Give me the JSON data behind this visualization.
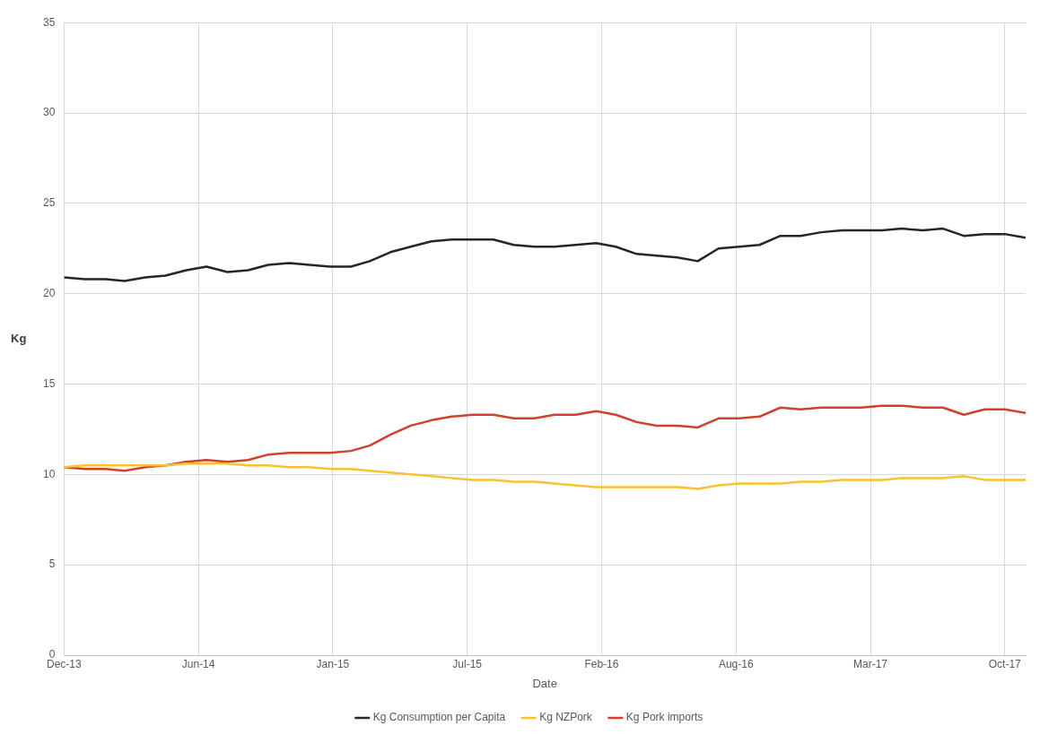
{
  "chart_data": {
    "type": "line",
    "xlabel": "Date",
    "ylabel": "Kg",
    "x": [
      "2013-12",
      "2014-01",
      "2014-02",
      "2014-03",
      "2014-04",
      "2014-05",
      "2014-06",
      "2014-07",
      "2014-08",
      "2014-09",
      "2014-10",
      "2014-11",
      "2014-12",
      "2015-01",
      "2015-02",
      "2015-03",
      "2015-04",
      "2015-05",
      "2015-06",
      "2015-07",
      "2015-08",
      "2015-09",
      "2015-10",
      "2015-11",
      "2015-12",
      "2016-01",
      "2016-02",
      "2016-03",
      "2016-04",
      "2016-05",
      "2016-06",
      "2016-07",
      "2016-08",
      "2016-09",
      "2016-10",
      "2016-11",
      "2016-12",
      "2017-01",
      "2017-02",
      "2017-03",
      "2017-04",
      "2017-05",
      "2017-06",
      "2017-07",
      "2017-08",
      "2017-09",
      "2017-10",
      "2017-11"
    ],
    "series": [
      {
        "name": "Kg Consumption per Capita",
        "color": "#262626",
        "values": [
          20.9,
          20.8,
          20.8,
          20.7,
          20.9,
          21.0,
          21.3,
          21.5,
          21.2,
          21.3,
          21.6,
          21.7,
          21.6,
          21.5,
          21.5,
          21.8,
          22.3,
          22.6,
          22.9,
          23.0,
          23.0,
          23.0,
          22.7,
          22.6,
          22.6,
          22.7,
          22.8,
          22.6,
          22.2,
          22.1,
          22.0,
          21.8,
          22.5,
          22.6,
          22.7,
          23.2,
          23.2,
          23.4,
          23.5,
          23.5,
          23.5,
          23.6,
          23.5,
          23.6,
          23.2,
          23.3,
          23.3,
          23.1
        ]
      },
      {
        "name": "Kg NZPork",
        "color": "#fdc030",
        "values": [
          10.4,
          10.5,
          10.5,
          10.5,
          10.5,
          10.5,
          10.6,
          10.6,
          10.6,
          10.5,
          10.5,
          10.4,
          10.4,
          10.3,
          10.3,
          10.2,
          10.1,
          10.0,
          9.9,
          9.8,
          9.7,
          9.7,
          9.6,
          9.6,
          9.5,
          9.4,
          9.3,
          9.3,
          9.3,
          9.3,
          9.3,
          9.2,
          9.4,
          9.5,
          9.5,
          9.5,
          9.6,
          9.6,
          9.7,
          9.7,
          9.7,
          9.8,
          9.8,
          9.8,
          9.9,
          9.7,
          9.7,
          9.7
        ]
      },
      {
        "name": "Kg Pork imports",
        "color": "#d1402a",
        "values": [
          10.4,
          10.3,
          10.3,
          10.2,
          10.4,
          10.5,
          10.7,
          10.8,
          10.7,
          10.8,
          11.1,
          11.2,
          11.2,
          11.2,
          11.3,
          11.6,
          12.2,
          12.7,
          13.0,
          13.2,
          13.3,
          13.3,
          13.1,
          13.1,
          13.3,
          13.3,
          13.5,
          13.3,
          12.9,
          12.7,
          12.7,
          12.6,
          13.1,
          13.1,
          13.2,
          13.7,
          13.6,
          13.7,
          13.7,
          13.7,
          13.8,
          13.8,
          13.7,
          13.7,
          13.3,
          13.6,
          13.6,
          13.4
        ]
      }
    ],
    "xlim": [
      "2013-12-01",
      "2017-11-01"
    ],
    "xticks": [
      {
        "value": "2013-12-01",
        "label": "Dec-13"
      },
      {
        "value": "2014-06-19",
        "label": "Jun-14"
      },
      {
        "value": "2015-01-05",
        "label": "Jan-15"
      },
      {
        "value": "2015-07-24",
        "label": "Jul-15"
      },
      {
        "value": "2016-02-09",
        "label": "Feb-16"
      },
      {
        "value": "2016-08-27",
        "label": "Aug-16"
      },
      {
        "value": "2017-03-15",
        "label": "Mar-17"
      },
      {
        "value": "2017-10-01",
        "label": "Oct-17"
      }
    ],
    "ylim": [
      0,
      35
    ],
    "yticks": [
      0,
      5,
      10,
      15,
      20,
      25,
      30,
      35
    ],
    "grid": true,
    "legend": "bottom",
    "marker": "none",
    "line_style": "solid"
  }
}
